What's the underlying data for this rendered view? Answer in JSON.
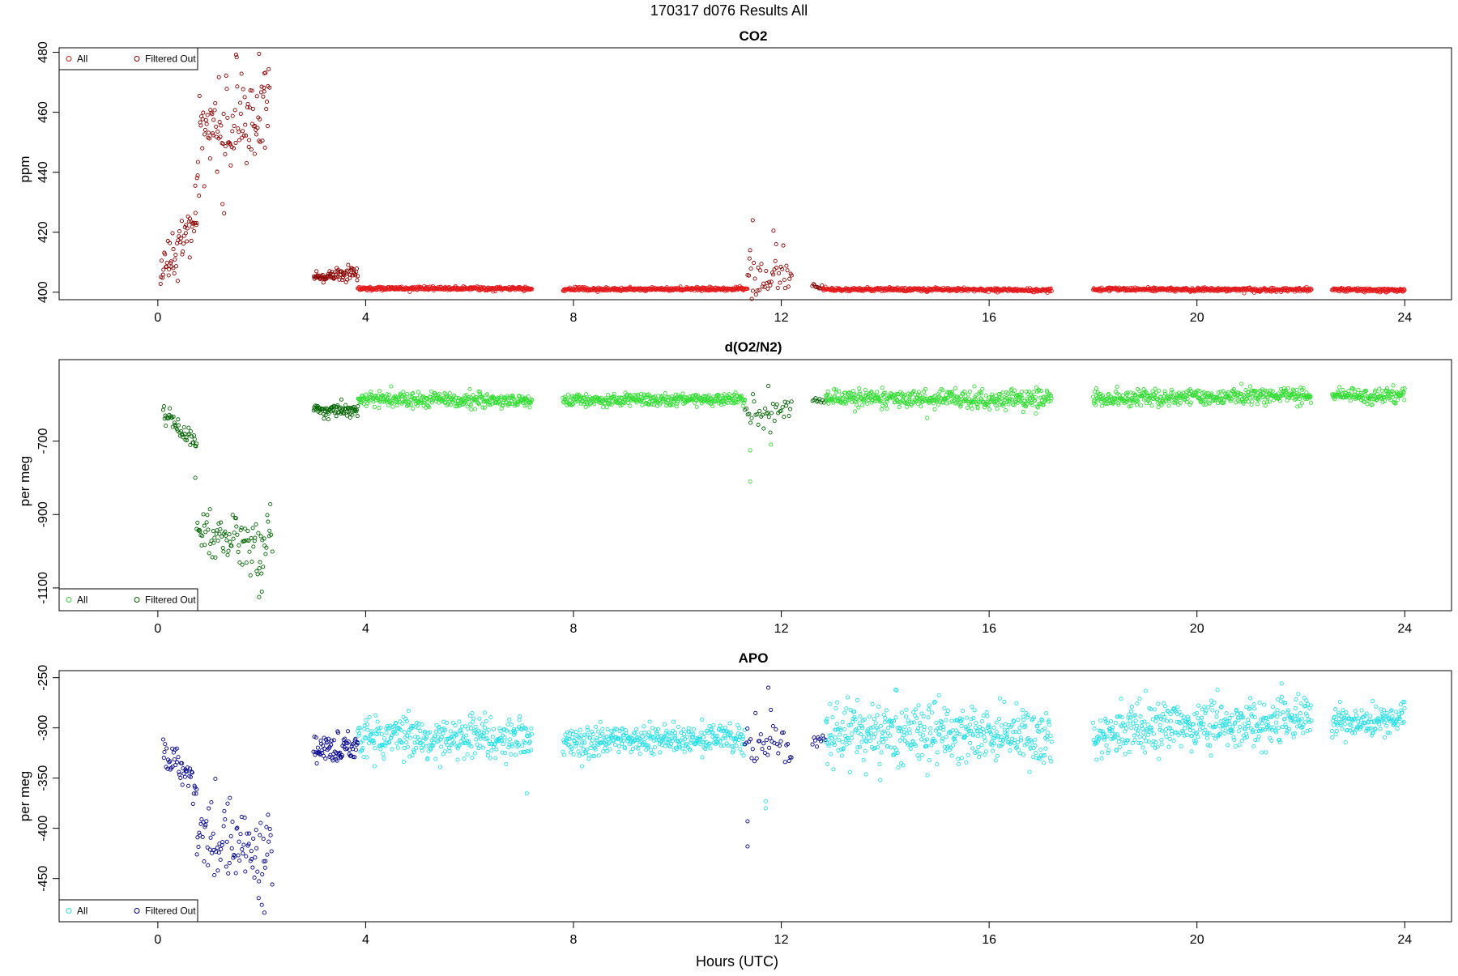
{
  "figure": {
    "title": "170317   d076   Results All",
    "xlabel": "Hours (UTC)"
  },
  "chart_data": [
    {
      "type": "scatter",
      "title": "CO2",
      "xlabel": "",
      "ylabel": "ppm",
      "xlim": [
        -1.9,
        24.9
      ],
      "ylim": [
        397.5,
        481.5
      ],
      "xticks": [
        0,
        4,
        8,
        12,
        16,
        20,
        24
      ],
      "yticks": [
        400,
        420,
        440,
        460,
        480
      ],
      "legend_position": "top-left",
      "legend": [
        {
          "label": "All",
          "color": "#e41a1c"
        },
        {
          "label": "Filtered Out",
          "color": "#8b0000"
        }
      ],
      "colors": {
        "all": "#e41a1c",
        "filtered": "#8b0000"
      },
      "segments": [
        {
          "x": [
            0.05,
            0.75
          ],
          "y": [
            406,
            424
          ],
          "noise": 3.5,
          "density": 80,
          "series": "filtered"
        },
        {
          "x": [
            0.75,
            2.15
          ],
          "y": [
            452,
            460
          ],
          "noise": 9,
          "density": 80,
          "series": "filtered"
        },
        {
          "x": [
            3.0,
            3.85
          ],
          "y": [
            405,
            406.5
          ],
          "noise": 1.2,
          "density": 90,
          "series": "filtered"
        },
        {
          "x": [
            3.85,
            7.2
          ],
          "y": [
            401.2,
            401.2
          ],
          "noise": 0.3,
          "density": 100,
          "series": "all"
        },
        {
          "x": [
            7.8,
            11.35
          ],
          "y": [
            400.9,
            401.1
          ],
          "noise": 0.3,
          "density": 100,
          "series": "all"
        },
        {
          "x": [
            11.35,
            12.2
          ],
          "y": [
            405,
            406
          ],
          "noise": 4,
          "density": 50,
          "series": "filtered"
        },
        {
          "x": [
            12.6,
            12.8
          ],
          "y": [
            402,
            401.5
          ],
          "noise": 0.5,
          "density": 50,
          "series": "filtered"
        },
        {
          "x": [
            12.8,
            17.2
          ],
          "y": [
            401.0,
            400.7
          ],
          "noise": 0.3,
          "density": 100,
          "series": "all"
        },
        {
          "x": [
            18.0,
            22.2
          ],
          "y": [
            400.9,
            400.8
          ],
          "noise": 0.3,
          "density": 100,
          "series": "all"
        },
        {
          "x": [
            22.6,
            24.0
          ],
          "y": [
            400.8,
            400.7
          ],
          "noise": 0.3,
          "density": 100,
          "series": "all"
        }
      ],
      "outliers": [
        {
          "x": 0.72,
          "y": 435.5,
          "series": "filtered"
        },
        {
          "x": 1.95,
          "y": 479.5,
          "series": "filtered"
        },
        {
          "x": 2.05,
          "y": 473,
          "series": "filtered"
        },
        {
          "x": 11.45,
          "y": 424,
          "series": "filtered"
        },
        {
          "x": 11.4,
          "y": 414,
          "series": "filtered"
        },
        {
          "x": 11.85,
          "y": 420.5,
          "series": "filtered"
        },
        {
          "x": 11.9,
          "y": 416,
          "series": "filtered"
        }
      ]
    },
    {
      "type": "scatter",
      "title": "d(O2/N2)",
      "xlabel": "",
      "ylabel": "per meg",
      "xlim": [
        -1.9,
        24.9
      ],
      "ylim": [
        -1162,
        -478
      ],
      "xticks": [
        0,
        4,
        8,
        12,
        16,
        20,
        24
      ],
      "yticks": [
        -700,
        -900,
        -1100
      ],
      "legend_position": "bottom-left",
      "legend": [
        {
          "label": "All",
          "color": "#33dd33"
        },
        {
          "label": "Filtered Out",
          "color": "#006400"
        }
      ],
      "colors": {
        "all": "#33dd33",
        "filtered": "#006400"
      },
      "segments": [
        {
          "x": [
            0.1,
            0.75
          ],
          "y": [
            -620,
            -710
          ],
          "noise": 12,
          "density": 70,
          "series": "filtered"
        },
        {
          "x": [
            0.75,
            2.2
          ],
          "y": [
            -960,
            -980
          ],
          "noise": 45,
          "density": 65,
          "series": "filtered"
        },
        {
          "x": [
            3.0,
            3.85
          ],
          "y": [
            -615,
            -615
          ],
          "noise": 9,
          "density": 90,
          "series": "filtered"
        },
        {
          "x": [
            3.85,
            7.2
          ],
          "y": [
            -585,
            -590
          ],
          "noise": 11,
          "density": 100,
          "series": "all"
        },
        {
          "x": [
            7.8,
            11.3
          ],
          "y": [
            -590,
            -585
          ],
          "noise": 8,
          "density": 100,
          "series": "all"
        },
        {
          "x": [
            11.3,
            12.2
          ],
          "y": [
            -620,
            -620
          ],
          "noise": 20,
          "density": 40,
          "series": "filtered"
        },
        {
          "x": [
            12.6,
            12.85
          ],
          "y": [
            -590,
            -590
          ],
          "noise": 5,
          "density": 40,
          "series": "filtered"
        },
        {
          "x": [
            12.85,
            17.2
          ],
          "y": [
            -585,
            -585
          ],
          "noise": 13,
          "density": 100,
          "series": "all"
        },
        {
          "x": [
            18.0,
            22.2
          ],
          "y": [
            -585,
            -575
          ],
          "noise": 11,
          "density": 100,
          "series": "all"
        },
        {
          "x": [
            22.6,
            24.0
          ],
          "y": [
            -575,
            -575
          ],
          "noise": 9,
          "density": 100,
          "series": "all"
        }
      ],
      "outliers": [
        {
          "x": 0.72,
          "y": -800,
          "series": "filtered"
        },
        {
          "x": 1.95,
          "y": -1125,
          "series": "filtered"
        },
        {
          "x": 2.0,
          "y": -1110,
          "series": "filtered"
        },
        {
          "x": 11.4,
          "y": -810,
          "series": "all"
        },
        {
          "x": 11.4,
          "y": -725,
          "series": "all"
        },
        {
          "x": 11.75,
          "y": -550,
          "series": "filtered"
        },
        {
          "x": 11.8,
          "y": -710,
          "series": "all"
        }
      ]
    },
    {
      "type": "scatter",
      "title": "APO",
      "xlabel": "Hours (UTC)",
      "ylabel": "per meg",
      "xlim": [
        -1.9,
        24.9
      ],
      "ylim": [
        -493,
        -243
      ],
      "xticks": [
        0,
        4,
        8,
        12,
        16,
        20,
        24
      ],
      "yticks": [
        -250,
        -300,
        -350,
        -400,
        -450
      ],
      "legend_position": "bottom-left",
      "legend": [
        {
          "label": "All",
          "color": "#22e0e8"
        },
        {
          "label": "Filtered Out",
          "color": "#00008b"
        }
      ],
      "colors": {
        "all": "#22e0e8",
        "filtered": "#00008b"
      },
      "segments": [
        {
          "x": [
            0.1,
            0.75
          ],
          "y": [
            -320,
            -360
          ],
          "noise": 9,
          "density": 70,
          "series": "filtered"
        },
        {
          "x": [
            0.75,
            2.2
          ],
          "y": [
            -405,
            -425
          ],
          "noise": 20,
          "density": 65,
          "series": "filtered"
        },
        {
          "x": [
            3.0,
            3.85
          ],
          "y": [
            -320,
            -320
          ],
          "noise": 8,
          "density": 90,
          "series": "filtered"
        },
        {
          "x": [
            3.85,
            7.2
          ],
          "y": [
            -310,
            -312
          ],
          "noise": 10,
          "density": 100,
          "series": "all"
        },
        {
          "x": [
            7.8,
            11.3
          ],
          "y": [
            -315,
            -310
          ],
          "noise": 8,
          "density": 100,
          "series": "all"
        },
        {
          "x": [
            11.3,
            12.2
          ],
          "y": [
            -320,
            -320
          ],
          "noise": 12,
          "density": 40,
          "series": "filtered"
        },
        {
          "x": [
            12.6,
            12.85
          ],
          "y": [
            -310,
            -310
          ],
          "noise": 4,
          "density": 40,
          "series": "filtered"
        },
        {
          "x": [
            12.85,
            17.2
          ],
          "y": [
            -305,
            -310
          ],
          "noise": 14,
          "density": 100,
          "series": "all"
        },
        {
          "x": [
            18.0,
            22.2
          ],
          "y": [
            -305,
            -290
          ],
          "noise": 12,
          "density": 100,
          "series": "all"
        },
        {
          "x": [
            22.6,
            24.0
          ],
          "y": [
            -295,
            -290
          ],
          "noise": 8,
          "density": 100,
          "series": "all"
        }
      ],
      "outliers": [
        {
          "x": 2.05,
          "y": -484,
          "series": "filtered"
        },
        {
          "x": 11.35,
          "y": -393,
          "series": "filtered"
        },
        {
          "x": 11.35,
          "y": -418,
          "series": "filtered"
        },
        {
          "x": 11.75,
          "y": -260,
          "series": "filtered"
        },
        {
          "x": 11.8,
          "y": -282,
          "series": "filtered"
        },
        {
          "x": 11.7,
          "y": -380,
          "series": "all"
        },
        {
          "x": 11.7,
          "y": -373,
          "series": "all"
        },
        {
          "x": 14.2,
          "y": -262,
          "series": "all"
        },
        {
          "x": 7.1,
          "y": -365,
          "series": "all"
        }
      ]
    }
  ]
}
